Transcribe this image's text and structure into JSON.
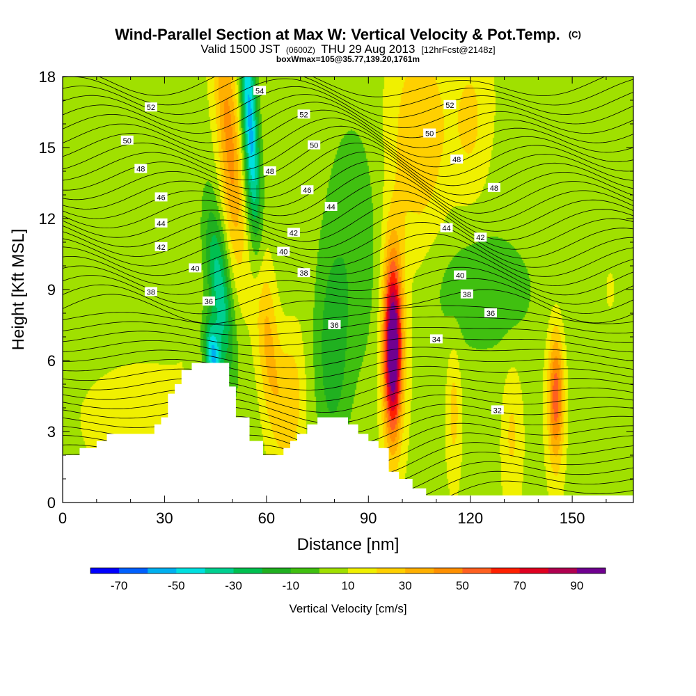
{
  "chart_data": {
    "type": "heatmap",
    "title": "Wind-Parallel Section at Max W: Vertical Velocity & Pot.Temp.",
    "title_mark": "(C)",
    "subtitle_a": "Valid 1500 JST",
    "subtitle_b": "(0600Z)",
    "subtitle_c": "THU 29 Aug 2013",
    "subtitle_d": "[12hrFcst@2148z]",
    "subtitle2": "boxWmax=105@35.77,139.20,1761m",
    "xlabel": "Distance [nm]",
    "ylabel": "Height [Kft MSL]",
    "xlim": [
      0,
      168
    ],
    "ylim": [
      0,
      18
    ],
    "xticks": [
      0,
      30,
      60,
      90,
      120,
      150
    ],
    "yticks": [
      0,
      3,
      6,
      9,
      12,
      15,
      18
    ],
    "colorbar": {
      "label": "Vertical Velocity [cm/s]",
      "tick_labels": [
        "-70",
        "-50",
        "-30",
        "-10",
        "10",
        "30",
        "50",
        "70",
        "90"
      ],
      "levels": [
        -80,
        -70,
        -60,
        -50,
        -40,
        -30,
        -20,
        -10,
        0,
        10,
        20,
        30,
        40,
        50,
        60,
        70,
        80,
        90,
        100
      ],
      "colors": [
        "#0000ff",
        "#0060ff",
        "#00b0f0",
        "#00e0e0",
        "#00d090",
        "#00c050",
        "#20b020",
        "#40c010",
        "#a0e000",
        "#f0f000",
        "#ffd000",
        "#ffb000",
        "#ff9000",
        "#ff6020",
        "#ff2000",
        "#e00020",
        "#b00050",
        "#700090"
      ]
    },
    "terrain": [
      [
        0,
        2
      ],
      [
        5,
        2
      ],
      [
        5,
        2.3
      ],
      [
        10,
        2.3
      ],
      [
        10,
        2.6
      ],
      [
        13,
        2.6
      ],
      [
        13,
        2.9
      ],
      [
        27,
        2.9
      ],
      [
        27,
        3.3
      ],
      [
        29,
        3.3
      ],
      [
        29,
        3.6
      ],
      [
        31,
        3.6
      ],
      [
        31,
        4.6
      ],
      [
        33,
        4.6
      ],
      [
        33,
        5.0
      ],
      [
        35,
        5.0
      ],
      [
        35,
        5.6
      ],
      [
        38,
        5.6
      ],
      [
        38,
        5.9
      ],
      [
        49,
        5.9
      ],
      [
        49,
        4.9
      ],
      [
        51,
        4.9
      ],
      [
        51,
        3.6
      ],
      [
        55,
        3.6
      ],
      [
        55,
        2.6
      ],
      [
        59,
        2.6
      ],
      [
        59,
        2.0
      ],
      [
        65,
        2.0
      ],
      [
        65,
        2.3
      ],
      [
        67,
        2.3
      ],
      [
        67,
        2.6
      ],
      [
        69,
        2.6
      ],
      [
        69,
        2.9
      ],
      [
        72,
        2.9
      ],
      [
        72,
        3.3
      ],
      [
        75,
        3.3
      ],
      [
        75,
        3.6
      ],
      [
        84,
        3.6
      ],
      [
        84,
        3.3
      ],
      [
        87,
        3.3
      ],
      [
        87,
        2.9
      ],
      [
        90,
        2.9
      ],
      [
        90,
        2.6
      ],
      [
        93,
        2.6
      ],
      [
        93,
        2.3
      ],
      [
        96,
        2.3
      ],
      [
        96,
        1.3
      ],
      [
        99,
        1.3
      ],
      [
        99,
        1.0
      ],
      [
        103,
        1.0
      ],
      [
        103,
        0.6
      ],
      [
        107,
        0.6
      ],
      [
        107,
        0.3
      ],
      [
        168,
        0.3
      ]
    ],
    "vertical_velocity_features": [
      {
        "x": 49,
        "y": 15.0,
        "sx": 2.4,
        "sy": 4.0,
        "w": 38,
        "tilt": -0.5
      },
      {
        "x": 55,
        "y": 16.0,
        "sx": 1.6,
        "sy": 3.5,
        "w": -62,
        "tilt": -0.35
      },
      {
        "x": 46,
        "y": 9.0,
        "sx": 2.2,
        "sy": 2.4,
        "w": -40,
        "tilt": -0.7
      },
      {
        "x": 44,
        "y": 6.2,
        "sx": 1.6,
        "sy": 1.0,
        "w": -55,
        "tilt": -0.5
      },
      {
        "x": 60,
        "y": 7.0,
        "sx": 2.5,
        "sy": 3.0,
        "w": 30,
        "tilt": -0.6
      },
      {
        "x": 67,
        "y": 4.5,
        "sx": 2.6,
        "sy": 1.8,
        "w": 20,
        "tilt": 0
      },
      {
        "x": 79,
        "y": 6.0,
        "sx": 3.5,
        "sy": 3.0,
        "w": -20,
        "tilt": 0
      },
      {
        "x": 97,
        "y": 6.5,
        "sx": 1.8,
        "sy": 2.5,
        "w": 95,
        "tilt": 0
      },
      {
        "x": 97,
        "y": 8.0,
        "sx": 3.0,
        "sy": 3.5,
        "w": 18,
        "tilt": 0
      },
      {
        "x": 105,
        "y": 15.5,
        "sx": 6.0,
        "sy": 3.0,
        "w": 22,
        "tilt": 0
      },
      {
        "x": 120,
        "y": 16.0,
        "sx": 4.0,
        "sy": 2.5,
        "w": 15,
        "tilt": 0
      },
      {
        "x": 145,
        "y": 4.5,
        "sx": 1.6,
        "sy": 2.0,
        "w": 50,
        "tilt": 0
      },
      {
        "x": 115,
        "y": 4.0,
        "sx": 1.5,
        "sy": 2.0,
        "w": 18,
        "tilt": 0
      },
      {
        "x": 132,
        "y": 3.0,
        "sx": 2.0,
        "sy": 2.0,
        "w": 15,
        "tilt": 0
      },
      {
        "x": 20,
        "y": 4.0,
        "sx": 10.0,
        "sy": 2.0,
        "w": 10,
        "tilt": 0
      },
      {
        "x": 160,
        "y": 9.0,
        "sx": 6.0,
        "sy": 3.0,
        "w": 8,
        "tilt": 0
      },
      {
        "x": 125,
        "y": 9.0,
        "sx": 12.0,
        "sy": 1.5,
        "w": -12,
        "tilt": 0
      },
      {
        "x": 85,
        "y": 12.0,
        "sx": 6.0,
        "sy": 4.0,
        "w": -10,
        "tilt": 0
      }
    ],
    "theta_contour_labels": [
      {
        "text": "54",
        "x": 58,
        "y": 17.4
      },
      {
        "text": "52",
        "x": 26,
        "y": 16.7
      },
      {
        "text": "52",
        "x": 71,
        "y": 16.4
      },
      {
        "text": "52",
        "x": 114,
        "y": 16.8
      },
      {
        "text": "50",
        "x": 19,
        "y": 15.3
      },
      {
        "text": "50",
        "x": 74,
        "y": 15.1
      },
      {
        "text": "50",
        "x": 108,
        "y": 15.6
      },
      {
        "text": "48",
        "x": 23,
        "y": 14.1
      },
      {
        "text": "48",
        "x": 61,
        "y": 14.0
      },
      {
        "text": "48",
        "x": 116,
        "y": 14.5
      },
      {
        "text": "48",
        "x": 127,
        "y": 13.3
      },
      {
        "text": "46",
        "x": 29,
        "y": 12.9
      },
      {
        "text": "46",
        "x": 72,
        "y": 13.2
      },
      {
        "text": "44",
        "x": 29,
        "y": 11.8
      },
      {
        "text": "44",
        "x": 79,
        "y": 12.5
      },
      {
        "text": "44",
        "x": 113,
        "y": 11.6
      },
      {
        "text": "42",
        "x": 29,
        "y": 10.8
      },
      {
        "text": "42",
        "x": 68,
        "y": 11.4
      },
      {
        "text": "42",
        "x": 123,
        "y": 11.2
      },
      {
        "text": "40",
        "x": 39,
        "y": 9.9
      },
      {
        "text": "40",
        "x": 65,
        "y": 10.6
      },
      {
        "text": "40",
        "x": 117,
        "y": 9.6
      },
      {
        "text": "38",
        "x": 26,
        "y": 8.9
      },
      {
        "text": "38",
        "x": 71,
        "y": 9.7
      },
      {
        "text": "38",
        "x": 119,
        "y": 8.8
      },
      {
        "text": "36",
        "x": 43,
        "y": 8.5
      },
      {
        "text": "36",
        "x": 80,
        "y": 7.5
      },
      {
        "text": "36",
        "x": 126,
        "y": 8.0
      },
      {
        "text": "34",
        "x": 110,
        "y": 6.9
      },
      {
        "text": "32",
        "x": 128,
        "y": 3.9
      }
    ]
  }
}
